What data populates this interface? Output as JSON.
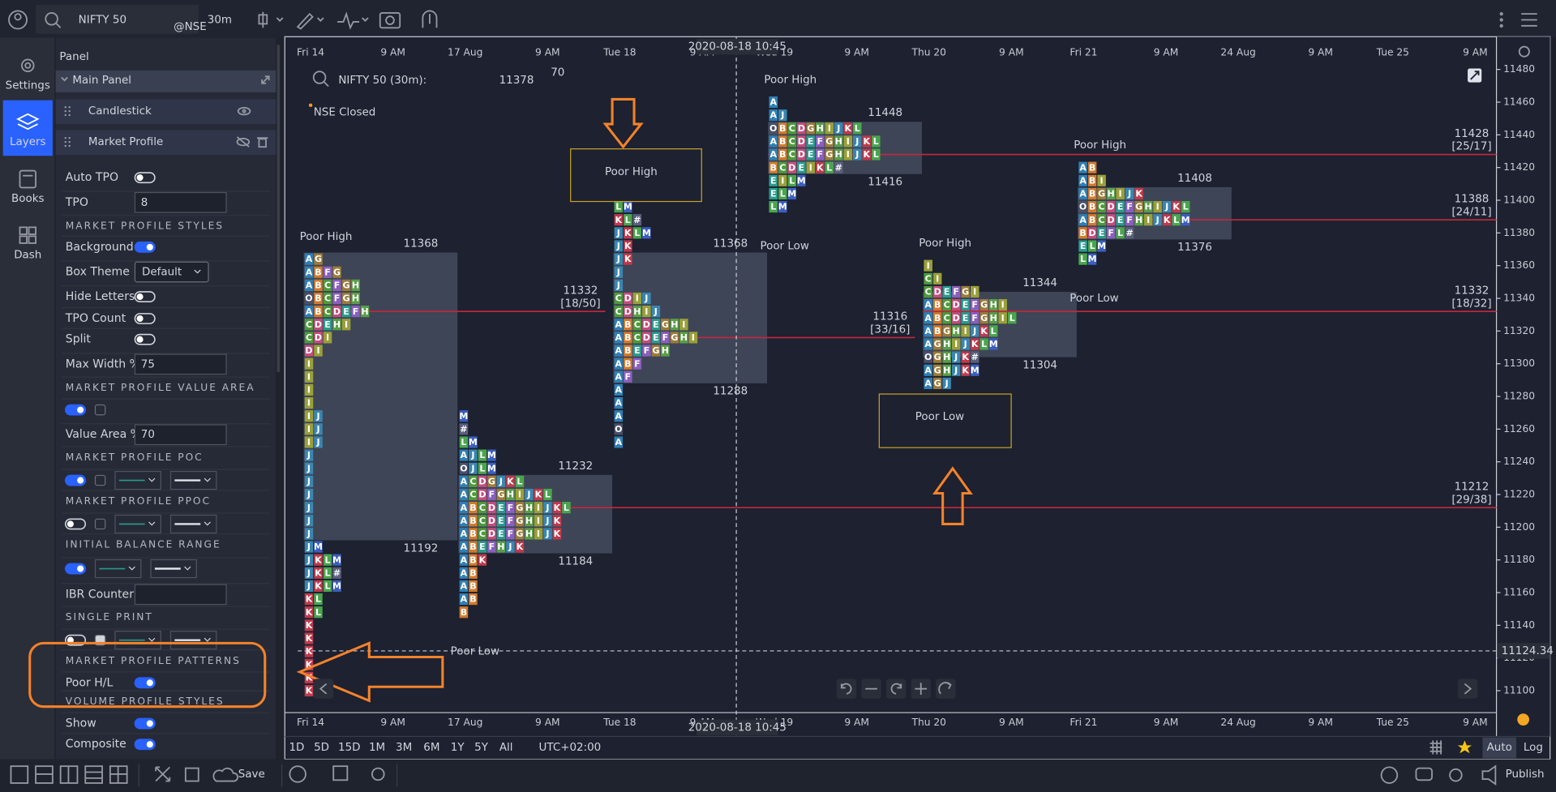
{
  "top_bar": {
    "symbol": "NIFTY 50",
    "exchange": "@NSE",
    "interval": "30m"
  },
  "sidebar": {
    "items": [
      "Settings",
      "Layers",
      "Books",
      "Dash"
    ],
    "active": 1
  },
  "panel": {
    "title": "Panel",
    "group": "Main Panel",
    "layers": [
      "Candlestick",
      "Market Profile"
    ],
    "items": [
      {
        "label": "Auto TPO",
        "toggle": false
      },
      {
        "label": "TPO",
        "input": 8
      },
      {
        "header": "MARKET PROFILE STYLES"
      },
      {
        "label": "Background",
        "toggle": true
      },
      {
        "label": "Box Theme",
        "select": "Default"
      },
      {
        "label": "Hide Letters",
        "toggle": false
      },
      {
        "label": "TPO Count",
        "toggle": false
      },
      {
        "label": "Split",
        "toggle": false
      },
      {
        "label": "Max Width %",
        "input": 75
      },
      {
        "header": "MARKET PROFILE VALUE AREA"
      },
      {
        "toggle": true,
        "checkbox": false
      },
      {
        "label": "Value Area %",
        "input": 70
      },
      {
        "header": "MARKET PROFILE POC"
      },
      {
        "toggle": true,
        "checkbox": false,
        "line_selects": 2
      },
      {
        "header": "MARKET PROFILE PPOC"
      },
      {
        "toggle": false,
        "checkbox": false,
        "line_selects": 2
      },
      {
        "header": "INITIAL BALANCE RANGE"
      },
      {
        "toggle": true,
        "line_selects": 2
      },
      {
        "label": "IBR Counter",
        "field": true
      },
      {
        "header": "SINGLE PRINT"
      },
      {
        "toggle": false,
        "checkbox": true,
        "line_selects": 2
      },
      {
        "header": "MARKET PROFILE PATTERNS"
      },
      {
        "label": "Poor H/L",
        "toggle": true
      },
      {
        "header": "VOLUME PROFILE STYLES"
      },
      {
        "label": "Show",
        "toggle": true
      },
      {
        "label": "Composite",
        "toggle": true
      }
    ]
  },
  "chart_data": {
    "type": "market_profile",
    "title": "NIFTY 50 (30m):",
    "last_price": "11378",
    "last_price_decimals": "70",
    "status": "NSE Closed",
    "x_labels": [
      "Fri 14",
      "9 AM",
      "17 Aug",
      "9 AM",
      "Tue 18",
      "9 AM",
      "Wed 19",
      "9 AM",
      "Thu 20",
      "9 AM",
      "Fri 21",
      "9 AM",
      "24 Aug",
      "9 AM",
      "Tue 25",
      "9 AM"
    ],
    "ylim": [
      11086.6,
      11498.2
    ],
    "yticks": [
      11100,
      11120,
      11140,
      11160,
      11180,
      11200,
      11220,
      11240,
      11260,
      11280,
      11300,
      11320,
      11340,
      11360,
      11380,
      11400,
      11420,
      11440,
      11460,
      11480
    ],
    "poc_line_color": "#c4283c",
    "va_box_color": "#4a5163",
    "letter_colors": {
      "A": "#2f7fb5",
      "B": "#d27a2c",
      "C": "#4e9a3b",
      "D": "#c44d7d",
      "E": "#2a9b8e",
      "F": "#8a5fbd",
      "G": "#9b7c3a",
      "H": "#5b9e49",
      "I": "#9aa03a",
      "J": "#3a86b0",
      "K": "#bf3a4c",
      "L": "#4aa54e",
      "M": "#3c5ebf",
      "O": "#4a5068",
      "#": "#5a5f7c"
    },
    "profiles": [
      {
        "top": 11368,
        "rows": [
          "AG",
          "ABFG",
          "ABCFGH",
          "OBCFGH",
          "ABCDEFH",
          "CDEHI",
          "CDI",
          "DI",
          "I",
          "I",
          "I",
          "I",
          "IJ",
          "IJ",
          "IJ",
          "J",
          "J",
          "J",
          "J",
          "J",
          "J",
          "J",
          "JM",
          "JKLM",
          "JKL#",
          "JKLM",
          "KL",
          "KL",
          "K",
          "K",
          "K",
          "K",
          "K",
          "K"
        ],
        "vah": 11368,
        "val": 11192,
        "poc": 11332,
        "poc_label": "[18/50]",
        "poc_label_color": "#9a9ea8",
        "poor_high": "Poor High"
      },
      {
        "top": 11272,
        "rows": [
          "M",
          "#",
          "LM",
          "AJLM",
          "OJLM",
          "ACDGJKL",
          "ACDFGHIJKL",
          "ABCDEFGHIJKL",
          "ABCDEFGHIJK",
          "ABCDEFGHIJK",
          "ABEFHJK",
          "ABK",
          "AB",
          "AB",
          "AB",
          "B"
        ],
        "vah": 11232,
        "val": 11184,
        "poc": 11212,
        "poc_label": "[29/38]",
        "poc_label_color": "#4caf50",
        "poor_low": "Poor Low"
      },
      {
        "top": 11408,
        "rows": [
          "L",
          "LM",
          "KL#",
          "JKLM",
          "JK",
          "JK",
          "J",
          "J",
          "CDIJ",
          "CDHIJ",
          "ABCDEGHI",
          "ABCDEFGHI",
          "ABEFGH",
          "ABF",
          "AF",
          "A",
          "A",
          "A",
          "O",
          "A"
        ],
        "vah": 11368,
        "val": 11288,
        "poc": 11316,
        "poc_label": "[33/16]",
        "poc_label_color": "#d6c847"
      },
      {
        "top": 11464,
        "rows": [
          "A",
          "AJ",
          "OBCDGHIJKL",
          "ABCDEFGHIJKL",
          "ABCDEFGHIJKL",
          "BCDEIKL#",
          "EILM",
          "ELM",
          "LM"
        ],
        "vah": 11448,
        "val": 11416,
        "poc": 11428,
        "poc_label": "[25/17]",
        "poc_label_color": "#4caf50",
        "poor_high": "Poor High",
        "poor_low": "Poor Low"
      },
      {
        "top": 11364,
        "rows": [
          "I",
          "CI",
          "CDEFGI",
          "ABCDEFGHI",
          "ABCDEFGHIL",
          "ABGHIJKL",
          "AGHIJKLM",
          "OGHJK#",
          "AGHJKM",
          "AGJ"
        ],
        "vah": 11344,
        "val": 11304,
        "poc": 11332,
        "poc_label": "[18/32]",
        "poc_label_color": "#4caf50",
        "poor_high": "Poor High"
      },
      {
        "top": 11424,
        "rows": [
          "AB",
          "ABI",
          "ABGHIJK",
          "OBCDEFGHIJKL",
          "ABCDEFHIJKLM",
          "BDEFL#",
          "ELM",
          "LM"
        ],
        "vah": 11408,
        "val": 11376,
        "poc": 11388,
        "poc_label": "[24/11]",
        "poc_label_color": "#4a6fd6",
        "poor_high": "Poor High",
        "poor_low": "Poor Low"
      }
    ],
    "annotations": [
      "Poor High",
      "Poor Low"
    ],
    "crosshair": {
      "time": "2020-08-18 10:45",
      "price": 11124.34
    }
  },
  "bottom_bar": {
    "ranges": [
      "1D",
      "5D",
      "15D",
      "1M",
      "3M",
      "6M",
      "1Y",
      "5Y",
      "All"
    ],
    "timezone": "UTC+02:00",
    "scales": [
      "Auto",
      "Log"
    ]
  },
  "footer": {
    "save": "Save",
    "publish": "Publish"
  }
}
